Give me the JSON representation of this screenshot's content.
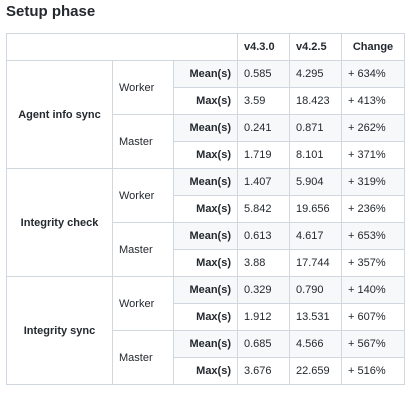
{
  "page": {
    "title": "Setup phase"
  },
  "table": {
    "headers": [
      "",
      "v4.3.0",
      "v4.2.5",
      "Change"
    ],
    "groups": [
      {
        "name": "Agent info sync",
        "roles": [
          {
            "name": "Worker",
            "rows": [
              {
                "metric": "Mean(s)",
                "v430": "0.585",
                "v425": "4.295",
                "change": "+ 634%"
              },
              {
                "metric": "Max(s)",
                "v430": "3.59",
                "v425": "18.423",
                "change": "+ 413%"
              }
            ]
          },
          {
            "name": "Master",
            "rows": [
              {
                "metric": "Mean(s)",
                "v430": "0.241",
                "v425": "0.871",
                "change": "+ 262%"
              },
              {
                "metric": "Max(s)",
                "v430": "1.719",
                "v425": "8.101",
                "change": "+ 371%"
              }
            ]
          }
        ]
      },
      {
        "name": "Integrity check",
        "roles": [
          {
            "name": "Worker",
            "rows": [
              {
                "metric": "Mean(s)",
                "v430": "1.407",
                "v425": "5.904",
                "change": "+ 319%"
              },
              {
                "metric": "Max(s)",
                "v430": "5.842",
                "v425": "19.656",
                "change": "+ 236%"
              }
            ]
          },
          {
            "name": "Master",
            "rows": [
              {
                "metric": "Mean(s)",
                "v430": "0.613",
                "v425": "4.617",
                "change": "+ 653%"
              },
              {
                "metric": "Max(s)",
                "v430": "3.88",
                "v425": "17.744",
                "change": "+ 357%"
              }
            ]
          }
        ]
      },
      {
        "name": "Integrity sync",
        "roles": [
          {
            "name": "Worker",
            "rows": [
              {
                "metric": "Mean(s)",
                "v430": "0.329",
                "v425": "0.790",
                "change": "+ 140%"
              },
              {
                "metric": "Max(s)",
                "v430": "1.912",
                "v425": "13.531",
                "change": "+ 607%"
              }
            ]
          },
          {
            "name": "Master",
            "rows": [
              {
                "metric": "Mean(s)",
                "v430": "0.685",
                "v425": "4.566",
                "change": "+ 567%"
              },
              {
                "metric": "Max(s)",
                "v430": "3.676",
                "v425": "22.659",
                "change": "+ 516%"
              }
            ]
          }
        ]
      }
    ]
  }
}
